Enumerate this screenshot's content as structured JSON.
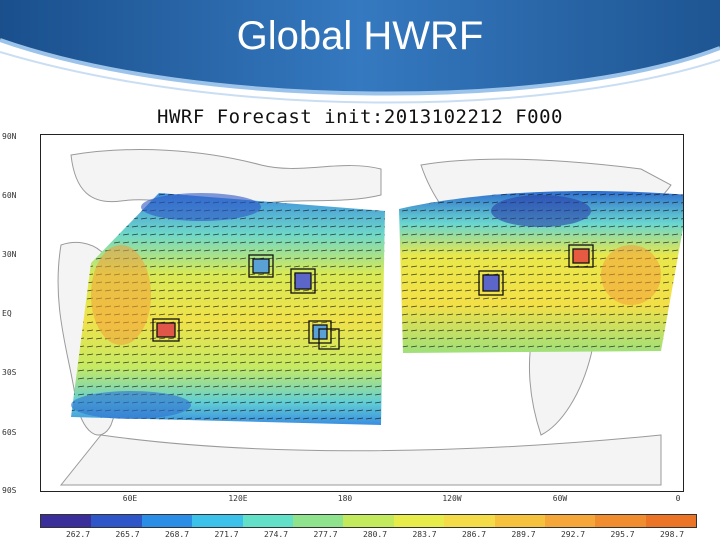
{
  "slide": {
    "title": "Global HWRF"
  },
  "plot": {
    "title": "HWRF Forecast init:2013102212 F000"
  },
  "map": {
    "lat_labels": [
      "90N",
      "60N",
      "30N",
      "EQ",
      "30S",
      "60S",
      "90S"
    ],
    "lon_labels": [
      "60E",
      "120E",
      "180",
      "120W",
      "60W",
      "0"
    ]
  },
  "colorbar": {
    "labels": [
      "262.7",
      "265.7",
      "268.7",
      "271.7",
      "274.7",
      "277.7",
      "280.7",
      "283.7",
      "286.7",
      "289.7",
      "292.7",
      "295.7",
      "298.7"
    ],
    "colors": [
      "#3a2e9a",
      "#2f56c9",
      "#2a8ee6",
      "#3cc1ea",
      "#62e0c8",
      "#8fe38c",
      "#c3ea5c",
      "#e8ec4a",
      "#f3dc48",
      "#f6c23e",
      "#f5a73a",
      "#f08e2f",
      "#ec7426"
    ]
  }
}
